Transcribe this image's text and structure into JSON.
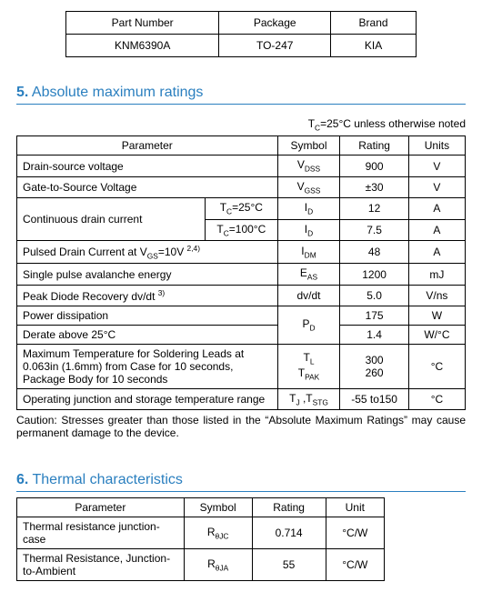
{
  "top_table": {
    "headers": [
      "Part Number",
      "Package",
      "Brand"
    ],
    "row": [
      "KNM6390A",
      "TO-247",
      "KIA"
    ]
  },
  "sec5": {
    "num": "5.",
    "title": "Absolute maximum ratings",
    "note_html": "T<sub>C</sub>=25°C unless otherwise noted",
    "headers": [
      "Parameter",
      "Symbol",
      "Rating",
      "Units"
    ],
    "rows": [
      {
        "param": "Drain-source voltage",
        "cond": "",
        "sym_html": "V<sub>DSS</sub>",
        "rating": "900",
        "unit": "V"
      },
      {
        "param": "Gate-to-Source Voltage",
        "cond": "",
        "sym_html": "V<sub>GSS</sub>",
        "rating": "±30",
        "unit": "V"
      },
      {
        "param": "Continuous drain current",
        "cond_html": "T<sub>C</sub>=25°C",
        "sym_html": "I<sub>D</sub>",
        "rating": "12",
        "unit": "A",
        "rowspan_param": 2
      },
      {
        "param": "",
        "cond_html": "T<sub>C</sub>=100°C",
        "sym_html": "I<sub>D</sub>",
        "rating": "7.5",
        "unit": "A"
      },
      {
        "param_html": "Pulsed Drain Current at V<sub>GS</sub>=10V <sup>2,4)</sup>",
        "sym_html": "I<sub>DM</sub>",
        "rating": "48",
        "unit": "A"
      },
      {
        "param": "Single pulse avalanche energy",
        "sym_html": "E<sub>AS</sub>",
        "rating": "1200",
        "unit": "mJ"
      },
      {
        "param_html": "Peak Diode Recovery dv/dt <sup>3)</sup>",
        "sym": "dv/dt",
        "rating": "5.0",
        "unit": "V/ns"
      },
      {
        "param": "Power dissipation",
        "sym_html": "P<sub>D</sub>",
        "rating": "175",
        "unit": "W",
        "rowspan_sym": 2
      },
      {
        "param": "Derate above 25°C",
        "rating": "1.4",
        "unit": "W/°C"
      },
      {
        "param": "Maximum Temperature for Soldering Leads at 0.063in (1.6mm) from Case for 10 seconds, Package Body for 10 seconds",
        "sym_html": "T<sub>L</sub><br>T<sub>PAK</sub>",
        "rating_html": "300<br>260",
        "unit": "°C"
      },
      {
        "param": "Operating junction and storage temperature range",
        "sym_html": "T<sub>J</sub> ,T<sub>STG</sub>",
        "rating": "-55 to150",
        "unit": "°C"
      }
    ],
    "caution": "Caution: Stresses greater than those listed in the “Absolute Maximum Ratings” may cause permanent damage to the device."
  },
  "sec6": {
    "num": "6.",
    "title": "Thermal characteristics",
    "headers": [
      "Parameter",
      "Symbol",
      "Rating",
      "Unit"
    ],
    "rows": [
      {
        "param": "Thermal resistance junction-case",
        "sym_html": "R<sub>θJC</sub>",
        "rating": "0.714",
        "unit": "°C/W"
      },
      {
        "param": "Thermal Resistance, Junction-to-Ambient",
        "sym_html": "R<sub>θJA</sub>",
        "rating": "55",
        "unit": "°C/W"
      }
    ]
  }
}
